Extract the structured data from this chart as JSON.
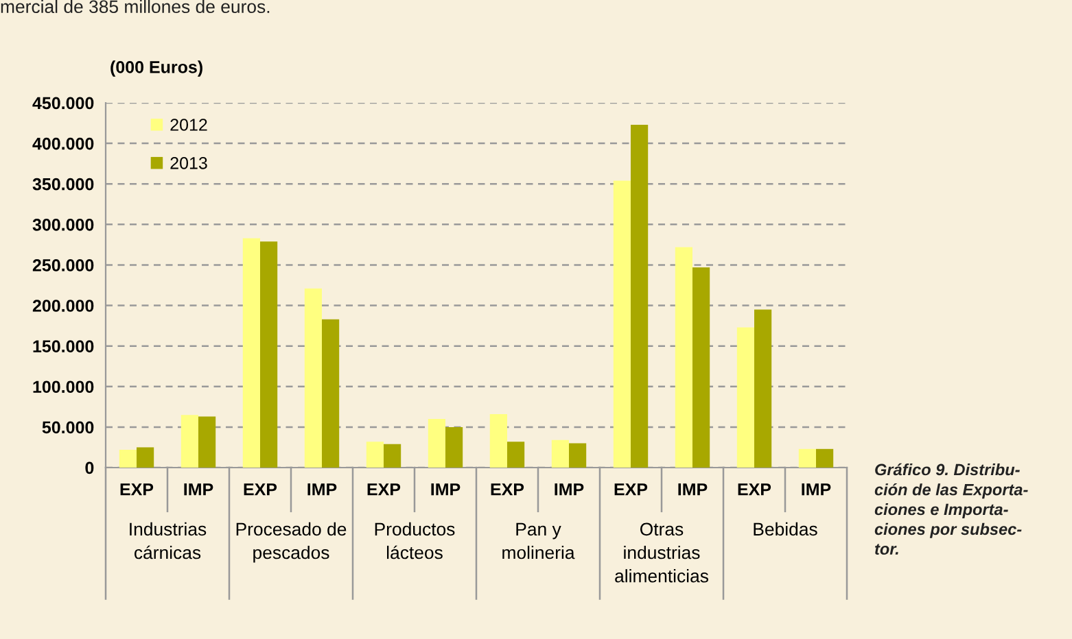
{
  "chart_data": {
    "type": "bar",
    "ylabel": "(000 Euros)",
    "categories": [
      "EXP",
      "IMP",
      "EXP",
      "IMP",
      "EXP",
      "IMP",
      "EXP",
      "IMP",
      "EXP",
      "IMP",
      "EXP",
      "IMP"
    ],
    "series": [
      {
        "name": "2012",
        "color": "#ffff80",
        "values": [
          22000,
          65000,
          283000,
          221000,
          32000,
          60000,
          66000,
          34000,
          354000,
          272000,
          173000,
          23000
        ]
      },
      {
        "name": "2013",
        "color": "#a8a800",
        "values": [
          25000,
          63000,
          279000,
          183000,
          29000,
          50000,
          32000,
          30000,
          423000,
          247000,
          195000,
          23000
        ]
      }
    ],
    "ylim": [
      0,
      450000
    ],
    "yticks": [
      0,
      {
        "value": 50000,
        "label": "50.000"
      },
      {
        "value": 100000,
        "label": "100.000"
      },
      {
        "value": 150000,
        "label": "150.000"
      },
      {
        "value": 200000,
        "label": "200.000"
      },
      {
        "value": 250000,
        "label": "250.000"
      },
      {
        "value": 300000,
        "label": "300.000"
      },
      {
        "value": 350000,
        "label": "350.000"
      },
      {
        "value": 400000,
        "label": "400.000"
      },
      {
        "value": 450000,
        "label": "450.000"
      }
    ],
    "grid": "y",
    "legend": "top left",
    "annotations": [
      "Industrias\ncárnicas",
      "Procesado de\npescados",
      "Productos\nlácteos",
      "Pan y\nmolineria",
      "Otras\nindustrias\nalimenticias",
      "Bebidas",
      "Gráfico 9. Distribu-\nción de las Exporta-\nciones e Importa-\nciones por subsec-\ntor.",
      "mercial de 385 millones de euros."
    ]
  }
}
